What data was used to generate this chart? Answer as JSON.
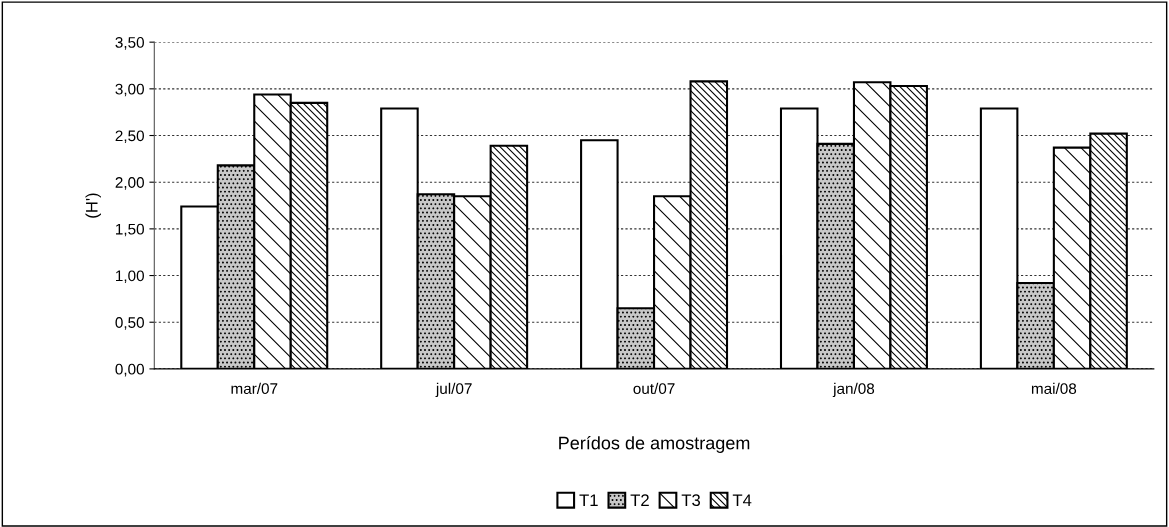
{
  "chart_data": {
    "type": "bar",
    "xlabel": "Perídos de amostragem",
    "ylabel": "(H')",
    "categories": [
      "mar/07",
      "jul/07",
      "out/07",
      "jan/08",
      "mai/08"
    ],
    "series": [
      {
        "name": "T1",
        "color": "#ffffff",
        "values": [
          1.74,
          2.79,
          2.45,
          2.79,
          2.79
        ]
      },
      {
        "name": "T2",
        "color": "#000000",
        "values": [
          2.18,
          1.87,
          0.65,
          2.41,
          0.92
        ]
      },
      {
        "name": "T3",
        "color": "#000000",
        "values": [
          2.94,
          1.85,
          1.85,
          3.07,
          2.37
        ]
      },
      {
        "name": "T4",
        "color": "#000000",
        "values": [
          2.85,
          2.39,
          3.08,
          3.03,
          2.52
        ]
      }
    ],
    "ylim": [
      0,
      3.5
    ],
    "yticks": [
      {
        "value": 0,
        "label": "0,00"
      },
      {
        "value": 0.5,
        "label": "0,50"
      },
      {
        "value": 1,
        "label": "1,00"
      },
      {
        "value": 1.5,
        "label": "1,50"
      },
      {
        "value": 2,
        "label": "2,00"
      },
      {
        "value": 2.5,
        "label": "2,50"
      },
      {
        "value": 3,
        "label": "3,00"
      },
      {
        "value": 3.5,
        "label": "3,50"
      }
    ],
    "grid": "y",
    "legend": "bottom"
  }
}
